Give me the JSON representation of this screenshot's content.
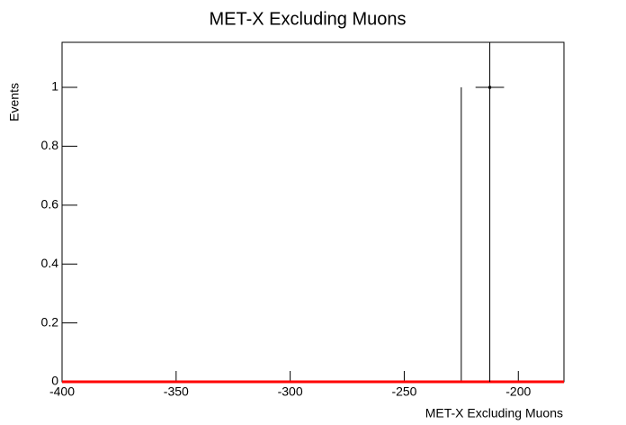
{
  "chart_data": {
    "type": "histogram",
    "title": "MET-X Excluding Muons",
    "x_label": "MET-X Excluding Muons",
    "y_label": "Events",
    "xlim": [
      -400,
      -180
    ],
    "ylim": [
      0,
      1.153
    ],
    "xticks": [
      -400,
      -350,
      -300,
      -250,
      -200
    ],
    "yticks": [
      0,
      0.2,
      0.4,
      0.6,
      0.8,
      1
    ],
    "bins": [
      -225,
      -212.5
    ],
    "counts": [
      1
    ],
    "color": "#000000",
    "points": {
      "x": [
        -212.5
      ],
      "values": [
        1
      ],
      "xerr": [
        6.25
      ],
      "yerr": [
        1
      ],
      "color": "#000000"
    },
    "fit": {
      "x": [
        -400,
        -180
      ],
      "values": [
        0,
        0
      ],
      "color": "#ff0000"
    }
  }
}
